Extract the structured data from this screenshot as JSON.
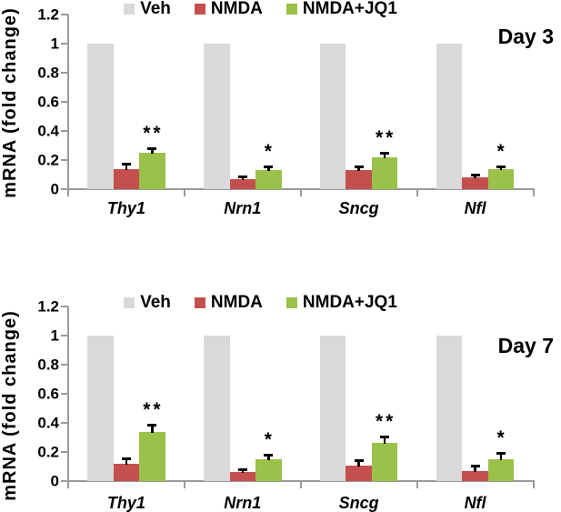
{
  "colors": {
    "veh": "#D9D9D9",
    "nmda": "#C4504D",
    "jq1": "#9AC14A",
    "axis": "#9a9a9a",
    "error_bar": "#000000",
    "text": "#000000",
    "background": "#ffffff"
  },
  "chart_data": [
    {
      "type": "bar",
      "title": "Day 3",
      "ylabel": "mRNA (fold change)",
      "xlabel": "",
      "ylim": [
        0,
        1.2
      ],
      "yticks": [
        0,
        0.2,
        0.4,
        0.6,
        0.8,
        1,
        1.2
      ],
      "ytick_labels": [
        "0",
        "0.2",
        "0.4",
        "0.6",
        "0.8",
        "1",
        "1.2"
      ],
      "categories": [
        "Thy1",
        "Nrn1",
        "Sncg",
        "Nfl"
      ],
      "grid": false,
      "legend_position": "top-center",
      "series": [
        {
          "name": "Veh",
          "color_key": "veh",
          "values": [
            1,
            1,
            1,
            1
          ]
        },
        {
          "name": "NMDA",
          "color_key": "nmda",
          "values": [
            0.14,
            0.07,
            0.13,
            0.08
          ],
          "errors": [
            0.04,
            0.025,
            0.03,
            0.025
          ]
        },
        {
          "name": "NMDA+JQ1",
          "color_key": "jq1",
          "values": [
            0.25,
            0.13,
            0.22,
            0.135
          ],
          "errors": [
            0.035,
            0.035,
            0.035,
            0.025
          ],
          "significance": [
            "**",
            "*",
            "**",
            "*"
          ]
        }
      ]
    },
    {
      "type": "bar",
      "title": "Day 7",
      "ylabel": "mRNA (fold change)",
      "xlabel": "",
      "ylim": [
        0,
        1.2
      ],
      "yticks": [
        0,
        0.2,
        0.4,
        0.6,
        0.8,
        1,
        1.2
      ],
      "ytick_labels": [
        "0",
        "0.2",
        "0.4",
        "0.6",
        "0.8",
        "1",
        "1.2"
      ],
      "categories": [
        "Thy1",
        "Nrn1",
        "Sncg",
        "Nfl"
      ],
      "grid": false,
      "legend_position": "top-center",
      "series": [
        {
          "name": "Veh",
          "color_key": "veh",
          "values": [
            1,
            1,
            1,
            1
          ]
        },
        {
          "name": "NMDA",
          "color_key": "nmda",
          "values": [
            0.12,
            0.06,
            0.105,
            0.07
          ],
          "errors": [
            0.045,
            0.03,
            0.045,
            0.04
          ]
        },
        {
          "name": "NMDA+JQ1",
          "color_key": "jq1",
          "values": [
            0.335,
            0.15,
            0.26,
            0.15
          ],
          "errors": [
            0.06,
            0.035,
            0.055,
            0.05
          ],
          "significance": [
            "**",
            "*",
            "**",
            "*"
          ]
        }
      ]
    }
  ]
}
